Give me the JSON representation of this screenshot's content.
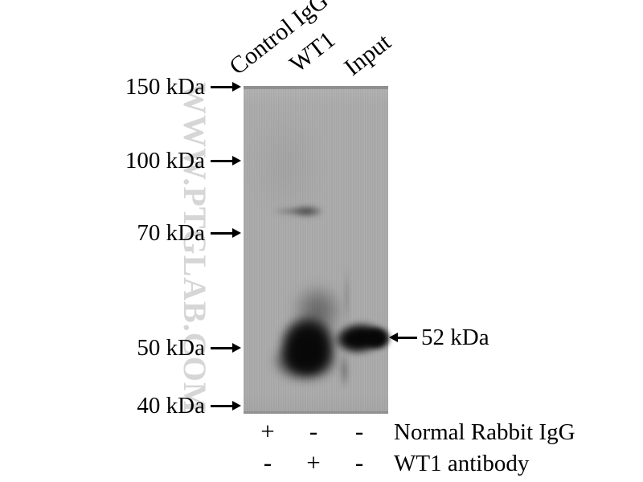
{
  "watermark": "WWW.PTGLAB.COM",
  "lanes": [
    {
      "label": "Control IgG"
    },
    {
      "label": "WT1"
    },
    {
      "label": "Input"
    }
  ],
  "markers": [
    {
      "label": "150 kDa"
    },
    {
      "label": "100 kDa"
    },
    {
      "label": "70 kDa"
    },
    {
      "label": "50 kDa"
    },
    {
      "label": "40 kDa"
    }
  ],
  "band_annotation": {
    "label": "52 kDa"
  },
  "bands": [
    {
      "lane": "WT1",
      "approx_kda": "~75",
      "intensity": "faint"
    },
    {
      "lane": "WT1",
      "approx_kda": "~50",
      "intensity": "strong"
    },
    {
      "lane": "Input",
      "approx_kda": "52",
      "intensity": "strong"
    }
  ],
  "treatments": [
    {
      "label": "Normal Rabbit IgG",
      "signs": [
        "+",
        "-",
        "-"
      ]
    },
    {
      "label": "WT1 antibody",
      "signs": [
        "-",
        "+",
        "-"
      ]
    }
  ],
  "colors": {
    "membrane": "#a9a9a9",
    "text": "#000000",
    "watermark": "#d6d6d6"
  }
}
